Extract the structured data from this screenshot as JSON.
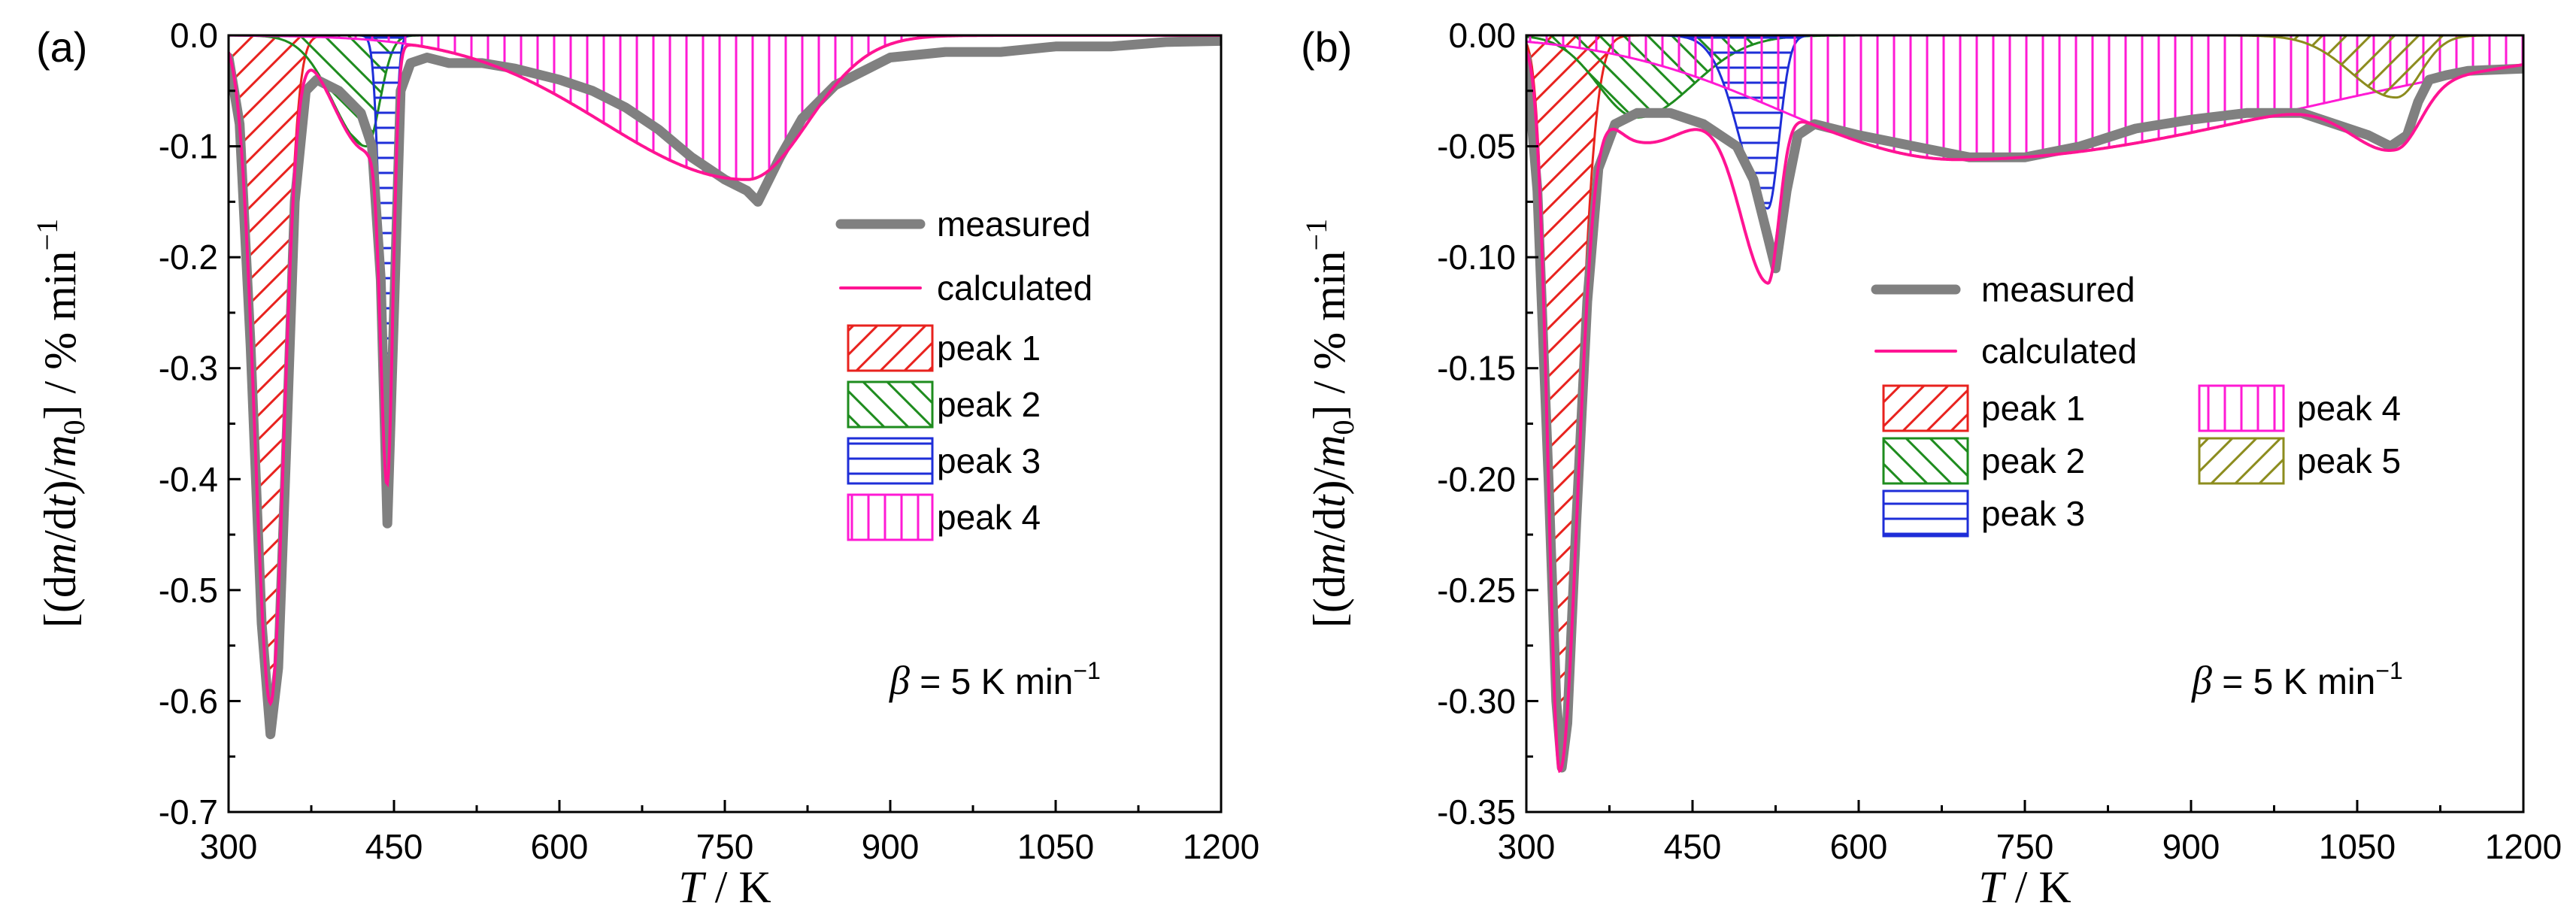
{
  "chart_data": [
    {
      "panel_label": "(a)",
      "type": "line",
      "xlabel_symbol": "T",
      "xlabel_unit": " / K",
      "ylabel": "[(dm/dt)/m0] / % min−1",
      "x_ticks": [
        "300",
        "450",
        "600",
        "750",
        "900",
        "1050",
        "1200"
      ],
      "y_ticks": [
        "0.0",
        "-0.1",
        "-0.2",
        "-0.3",
        "-0.4",
        "-0.5",
        "-0.6",
        "-0.7"
      ],
      "xlim": [
        300,
        1200
      ],
      "ylim": [
        -0.7,
        0.0
      ],
      "annotation": {
        "symbol": "β",
        "text": " = 5 K min",
        "sup": "−1"
      },
      "legend": [
        {
          "name": "measured",
          "kind": "line",
          "color": "#808080"
        },
        {
          "name": "calculated",
          "kind": "line",
          "color": "#ff1493"
        },
        {
          "name": "peak 1",
          "kind": "fill",
          "pattern": "diag-right",
          "color": "#e8221e"
        },
        {
          "name": "peak 2",
          "kind": "fill",
          "pattern": "diag-left",
          "color": "#1e8c1e"
        },
        {
          "name": "peak 3",
          "kind": "fill",
          "pattern": "horizontal",
          "color": "#1e2ed8"
        },
        {
          "name": "peak 4",
          "kind": "fill",
          "pattern": "vertical",
          "color": "#ff1ad4"
        }
      ],
      "peaks": [
        {
          "name": "peak 1",
          "center": 338,
          "amplitude": -0.6,
          "sigma_left": 14,
          "sigma_right": 12,
          "pattern": "diag-right",
          "color": "#e8221e"
        },
        {
          "name": "peak 2",
          "center": 425,
          "amplitude": -0.1,
          "sigma_left": 30,
          "sigma_right": 12,
          "pattern": "diag-left",
          "color": "#1e8c1e"
        },
        {
          "name": "peak 3",
          "center": 444,
          "amplitude": -0.37,
          "sigma_left": 6,
          "sigma_right": 5,
          "pattern": "horizontal",
          "color": "#1e2ed8"
        },
        {
          "name": "peak 4",
          "center": 770,
          "amplitude": -0.13,
          "sigma_left": 130,
          "sigma_right": 55,
          "pattern": "vertical",
          "color": "#ff1ad4"
        }
      ],
      "measured": {
        "x": [
          300,
          310,
          320,
          330,
          338,
          345,
          352,
          360,
          370,
          380,
          390,
          400,
          410,
          420,
          430,
          438,
          444,
          450,
          456,
          465,
          480,
          500,
          530,
          560,
          600,
          630,
          660,
          690,
          720,
          750,
          770,
          780,
          790,
          800,
          820,
          850,
          880,
          900,
          950,
          1000,
          1050,
          1100,
          1150,
          1200
        ],
        "y": [
          -0.02,
          -0.08,
          -0.28,
          -0.53,
          -0.63,
          -0.57,
          -0.38,
          -0.15,
          -0.05,
          -0.04,
          -0.045,
          -0.05,
          -0.06,
          -0.07,
          -0.1,
          -0.22,
          -0.44,
          -0.25,
          -0.05,
          -0.025,
          -0.02,
          -0.025,
          -0.025,
          -0.03,
          -0.04,
          -0.05,
          -0.065,
          -0.085,
          -0.11,
          -0.13,
          -0.14,
          -0.15,
          -0.13,
          -0.11,
          -0.075,
          -0.045,
          -0.03,
          -0.02,
          -0.015,
          -0.015,
          -0.01,
          -0.01,
          -0.006,
          -0.005
        ]
      }
    },
    {
      "panel_label": "(b)",
      "type": "line",
      "xlabel_symbol": "T",
      "xlabel_unit": " / K",
      "ylabel": "[(dm/dt)/m0] / % min−1",
      "x_ticks": [
        "300",
        "450",
        "600",
        "750",
        "900",
        "1050",
        "1200"
      ],
      "y_ticks": [
        "0.00",
        "-0.05",
        "-0.10",
        "-0.15",
        "-0.20",
        "-0.25",
        "-0.30",
        "-0.35"
      ],
      "xlim": [
        300,
        1200
      ],
      "ylim": [
        -0.35,
        0.0
      ],
      "annotation": {
        "symbol": "β",
        "text": " = 5 K min",
        "sup": "−1"
      },
      "legend": [
        {
          "name": "measured",
          "kind": "line",
          "color": "#808080"
        },
        {
          "name": "calculated",
          "kind": "line",
          "color": "#ff1493"
        },
        {
          "name": "peak 1",
          "kind": "fill",
          "pattern": "diag-right",
          "color": "#e8221e"
        },
        {
          "name": "peak 2",
          "kind": "fill",
          "pattern": "diag-left",
          "color": "#1e8c1e"
        },
        {
          "name": "peak 3",
          "kind": "fill",
          "pattern": "horizontal",
          "color": "#1e2ed8"
        },
        {
          "name": "peak 4",
          "kind": "fill",
          "pattern": "vertical",
          "color": "#ff1ad4"
        },
        {
          "name": "peak 5",
          "kind": "fill",
          "pattern": "diag-right",
          "color": "#8c8c1e"
        }
      ],
      "peaks": [
        {
          "name": "peak 1",
          "center": 330,
          "amplitude": -0.322,
          "sigma_left": 10,
          "sigma_right": 16,
          "pattern": "diag-right",
          "color": "#e8221e"
        },
        {
          "name": "peak 2",
          "center": 400,
          "amplitude": -0.037,
          "sigma_left": 35,
          "sigma_right": 50,
          "pattern": "diag-left",
          "color": "#1e8c1e"
        },
        {
          "name": "peak 3",
          "center": 518,
          "amplitude": -0.078,
          "sigma_left": 25,
          "sigma_right": 10,
          "pattern": "horizontal",
          "color": "#1e2ed8"
        },
        {
          "name": "peak 4",
          "center": 690,
          "amplitude": -0.056,
          "sigma_left": 160,
          "sigma_right": 300,
          "pattern": "vertical",
          "color": "#ff1ad4"
        },
        {
          "name": "peak 5",
          "center": 1085,
          "amplitude": -0.028,
          "sigma_left": 40,
          "sigma_right": 22,
          "pattern": "diag-right",
          "color": "#8c8c1e"
        }
      ],
      "measured": {
        "x": [
          300,
          310,
          320,
          327,
          332,
          337,
          345,
          355,
          365,
          380,
          400,
          430,
          460,
          490,
          505,
          515,
          525,
          535,
          545,
          560,
          600,
          650,
          700,
          750,
          800,
          850,
          900,
          950,
          1000,
          1030,
          1060,
          1080,
          1095,
          1105,
          1115,
          1130,
          1150,
          1200
        ],
        "y": [
          -0.01,
          -0.07,
          -0.2,
          -0.3,
          -0.33,
          -0.31,
          -0.22,
          -0.12,
          -0.06,
          -0.04,
          -0.035,
          -0.035,
          -0.04,
          -0.05,
          -0.065,
          -0.085,
          -0.105,
          -0.07,
          -0.045,
          -0.04,
          -0.045,
          -0.05,
          -0.055,
          -0.055,
          -0.05,
          -0.042,
          -0.038,
          -0.035,
          -0.035,
          -0.04,
          -0.045,
          -0.05,
          -0.045,
          -0.03,
          -0.02,
          -0.018,
          -0.016,
          -0.015
        ]
      }
    }
  ]
}
